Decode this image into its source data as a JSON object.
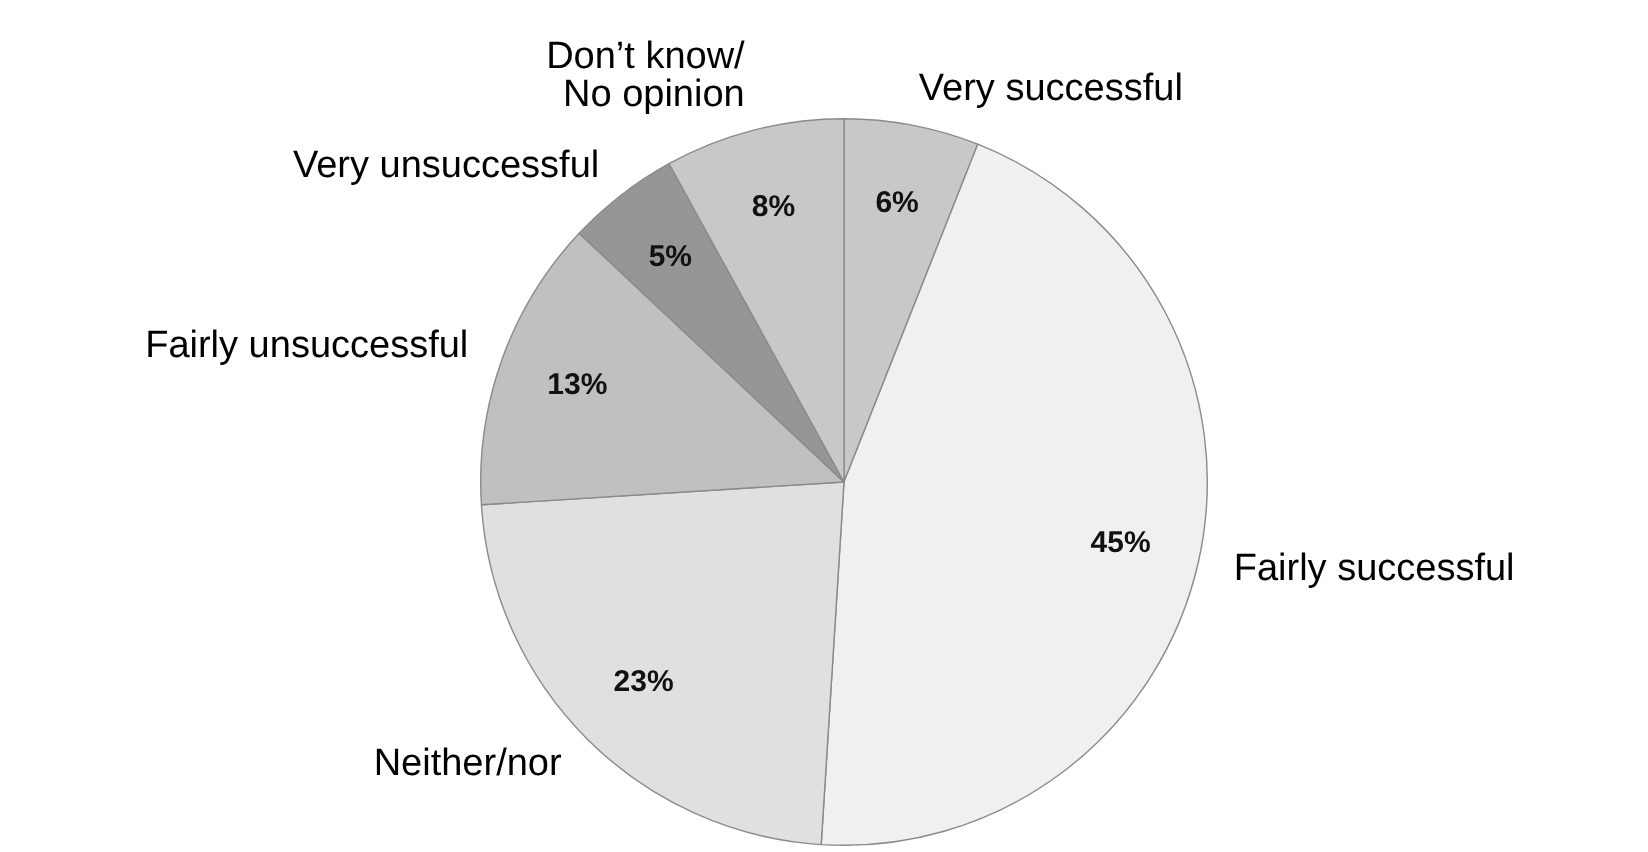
{
  "chart_data": {
    "type": "pie",
    "categories": [
      "Very successful",
      "Fairly successful",
      "Neither/nor",
      "Fairly unsuccessful",
      "Very unsuccessful",
      "Don’t know/\nNo opinion"
    ],
    "values": [
      6,
      45,
      23,
      13,
      5,
      8
    ],
    "colors": [
      "#c8c8c8",
      "#f0f0f0",
      "#e0e0e0",
      "#c0c0c0",
      "#969696",
      "#c8c8c8"
    ],
    "value_labels": [
      "6%",
      "45%",
      "23%",
      "13%",
      "5%",
      "8%"
    ],
    "legend": false
  }
}
